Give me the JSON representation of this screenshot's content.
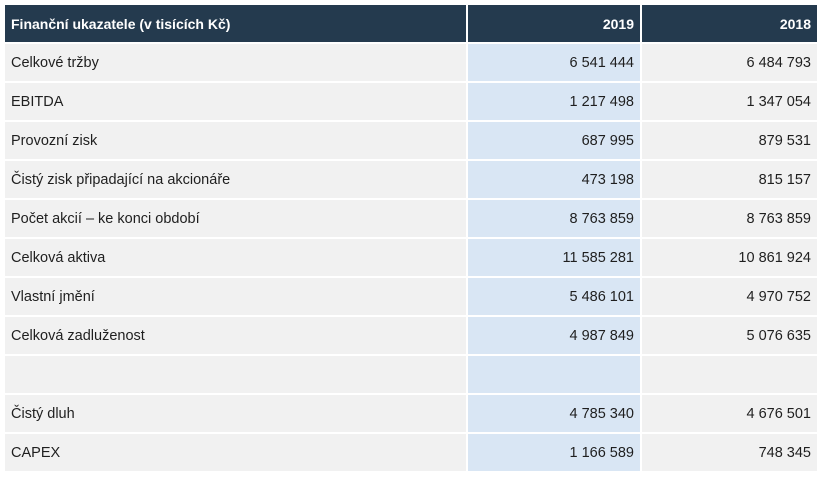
{
  "table": {
    "header": {
      "label": "Finanční ukazatele (v tisících Kč)",
      "year_1": "2019",
      "year_2": "2018"
    },
    "rows": [
      {
        "label": "Celkové tržby",
        "v2019": "6 541 444",
        "v2018": "6 484 793"
      },
      {
        "label": "EBITDA",
        "v2019": "1 217 498",
        "v2018": "1 347 054"
      },
      {
        "label": "Provozní zisk",
        "v2019": "687 995",
        "v2018": "879 531"
      },
      {
        "label": "Čistý zisk připadající na akcionáře",
        "v2019": "473 198",
        "v2018": "815 157"
      },
      {
        "label": "Počet akcií – ke konci období",
        "v2019": "8 763 859",
        "v2018": "8 763 859"
      },
      {
        "label": "Celková aktiva",
        "v2019": "11 585 281",
        "v2018": "10 861 924"
      },
      {
        "label": "Vlastní jmění",
        "v2019": "5 486 101",
        "v2018": "4 970 752"
      },
      {
        "label": "Celková zadluženost",
        "v2019": "4 987 849",
        "v2018": "5 076 635"
      },
      {
        "label": "",
        "v2019": "",
        "v2018": ""
      },
      {
        "label": "Čistý dluh",
        "v2019": "4 785 340",
        "v2018": "4 676 501"
      },
      {
        "label": "CAPEX",
        "v2019": "1 166 589",
        "v2018": "748 345"
      }
    ]
  }
}
